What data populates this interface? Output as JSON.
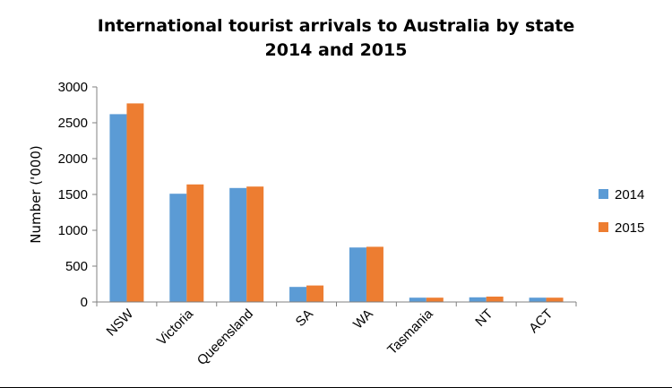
{
  "chart_data": {
    "type": "bar",
    "title": [
      "International tourist arrivals to Australia by state",
      "2014 and 2015"
    ],
    "xlabel": "",
    "ylabel": "Number ('000)",
    "ylim": [
      0,
      3000
    ],
    "yticks": [
      0,
      500,
      1000,
      1500,
      2000,
      2500,
      3000
    ],
    "categories": [
      "NSW",
      "Victoria",
      "Queensland",
      "SA",
      "WA",
      "Tasmania",
      "NT",
      "ACT"
    ],
    "series": [
      {
        "name": "2014",
        "color": "#5b9bd5",
        "values": [
          2620,
          1510,
          1590,
          210,
          760,
          60,
          65,
          60
        ]
      },
      {
        "name": "2015",
        "color": "#ed7d31",
        "values": [
          2770,
          1640,
          1610,
          230,
          770,
          60,
          75,
          60
        ]
      }
    ],
    "grid": false,
    "legend": "right"
  }
}
